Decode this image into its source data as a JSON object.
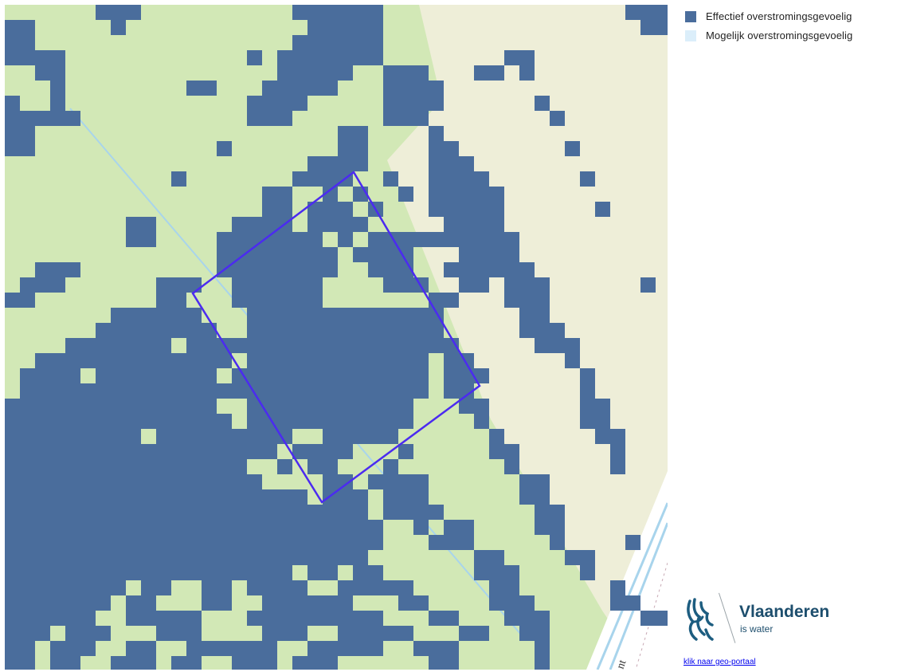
{
  "legend": {
    "items": [
      {
        "label": "Effectief overstromingsgevoelig",
        "color": "#4a6d9c"
      },
      {
        "label": "Mogelijk overstromingsgevoelig",
        "color": "#dbeefa"
      }
    ]
  },
  "logo": {
    "title": "Vlaanderen",
    "subtitle": "is water"
  },
  "link": {
    "label": "klik naar geo-portaal"
  },
  "map": {
    "colors": {
      "background": "#eeeed8",
      "green_area": "#d2e8b6",
      "flood_effective": "#4a6d9c",
      "railway": "#ffffff",
      "waterway": "#a8d4ec",
      "parcel_outline": "#4b2bf0"
    },
    "road_label": "nt"
  }
}
